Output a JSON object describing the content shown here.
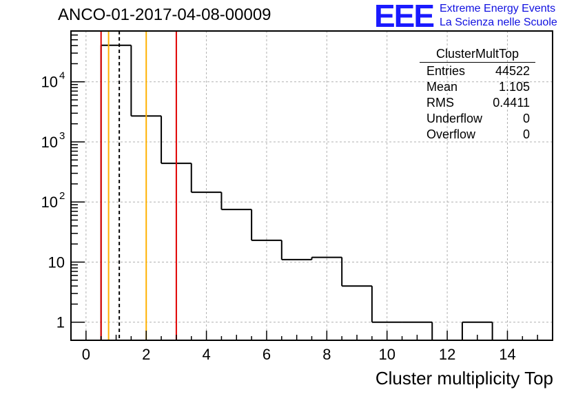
{
  "title": "ANCO-01-2017-04-08-00009",
  "logo": {
    "mark": "EEE",
    "line1": "Extreme Energy Events",
    "line2": "La Scienza nelle Scuole"
  },
  "stats": {
    "name": "ClusterMultTop",
    "rows": [
      {
        "label": "Entries",
        "value": "44522"
      },
      {
        "label": "Mean",
        "value": "1.105"
      },
      {
        "label": "RMS",
        "value": "0.4411"
      },
      {
        "label": "Underflow",
        "value": "0"
      },
      {
        "label": "Overflow",
        "value": "0"
      }
    ]
  },
  "chart_data": {
    "type": "bar",
    "style": "step-histogram",
    "xlabel": "Cluster multiplicity Top",
    "ylabel": "",
    "xlim": [
      -0.5,
      15.5
    ],
    "ylim": [
      0.5,
      70000
    ],
    "yscale": "log",
    "grid": true,
    "bin_width": 1,
    "bins": [
      {
        "center": 1,
        "count": 40500
      },
      {
        "center": 2,
        "count": 2700
      },
      {
        "center": 3,
        "count": 440
      },
      {
        "center": 4,
        "count": 145
      },
      {
        "center": 5,
        "count": 75
      },
      {
        "center": 6,
        "count": 23
      },
      {
        "center": 7,
        "count": 11
      },
      {
        "center": 8,
        "count": 12
      },
      {
        "center": 9,
        "count": 4
      },
      {
        "center": 10,
        "count": 1
      },
      {
        "center": 11,
        "count": 1
      },
      {
        "center": 12,
        "count": 0
      },
      {
        "center": 13,
        "count": 1
      }
    ],
    "x_ticks": [
      0,
      2,
      4,
      6,
      8,
      10,
      12,
      14
    ],
    "y_ticks": [
      {
        "value": 1,
        "base": "1",
        "exp": ""
      },
      {
        "value": 10,
        "base": "10",
        "exp": ""
      },
      {
        "value": 100,
        "base": "10",
        "exp": "2"
      },
      {
        "value": 1000,
        "base": "10",
        "exp": "3"
      },
      {
        "value": 10000,
        "base": "10",
        "exp": "4"
      }
    ],
    "vlines": [
      {
        "x": 0.5,
        "color": "#e00000",
        "style": "solid"
      },
      {
        "x": 0.75,
        "color": "#ffb000",
        "style": "solid"
      },
      {
        "x": 1.105,
        "color": "#000000",
        "style": "dashed"
      },
      {
        "x": 2.0,
        "color": "#ffb000",
        "style": "solid"
      },
      {
        "x": 3.0,
        "color": "#e00000",
        "style": "solid"
      }
    ],
    "colors": {
      "histogram": "#000000",
      "grid": "#b0b0b0"
    }
  }
}
